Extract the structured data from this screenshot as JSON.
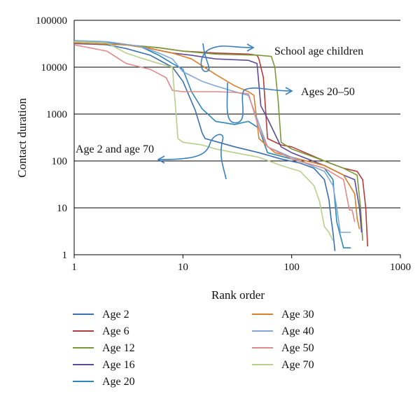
{
  "chart_data": {
    "type": "line",
    "x_scale": "log",
    "y_scale": "log",
    "xlim": [
      1,
      1000
    ],
    "ylim": [
      1,
      100000
    ],
    "xlabel": "Rank order",
    "ylabel": "Contact duration",
    "x_ticks": [
      "1",
      "10",
      "100",
      "1000"
    ],
    "y_ticks": [
      "1",
      "10",
      "100",
      "1000",
      "10000",
      "100000"
    ],
    "grid": "horizontal major lines",
    "legend_position": "bottom",
    "annotations": [
      {
        "text": "School age children",
        "arrow": "from ranks ~15–50 at ~20000 pointing right"
      },
      {
        "text": "Ages 20–50",
        "arrow": "from ranks ~25–70 at ~1500–3000 pointing right"
      },
      {
        "text": "Age 2 and age 70",
        "arrow": "from ranks ~10–25 at ~150 pointing left"
      }
    ],
    "series": [
      {
        "name": "Age 2",
        "color": "#3a6fb0",
        "x": [
          1,
          2,
          3,
          5,
          8,
          10,
          13,
          15,
          16,
          20,
          30,
          50,
          80,
          120,
          160,
          200,
          220,
          230,
          240,
          250
        ],
        "y": [
          32000,
          30000,
          25000,
          18000,
          10000,
          5000,
          1200,
          400,
          300,
          260,
          200,
          150,
          110,
          90,
          70,
          40,
          15,
          6,
          3,
          1.2
        ]
      },
      {
        "name": "Age 6",
        "color": "#b33b3b",
        "x": [
          1,
          3,
          6,
          10,
          20,
          40,
          48,
          50,
          55,
          60,
          80,
          100,
          200,
          300,
          400,
          450,
          480,
          500
        ],
        "y": [
          33000,
          30000,
          26000,
          22000,
          20000,
          19000,
          18000,
          15000,
          6000,
          300,
          220,
          200,
          100,
          70,
          60,
          40,
          10,
          1.5
        ]
      },
      {
        "name": "Age 12",
        "color": "#7a9a3a",
        "x": [
          1,
          3,
          6,
          10,
          20,
          50,
          65,
          70,
          75,
          80,
          100,
          200,
          300,
          400,
          430,
          450
        ],
        "y": [
          33000,
          30000,
          26000,
          22000,
          19000,
          18000,
          17000,
          10000,
          2000,
          250,
          180,
          100,
          70,
          50,
          10,
          2
        ]
      },
      {
        "name": "Age 16",
        "color": "#5e4a9a",
        "x": [
          1,
          3,
          5,
          8,
          12,
          20,
          40,
          48,
          52,
          60,
          80,
          100,
          200,
          300,
          380,
          420,
          440
        ],
        "y": [
          32000,
          30000,
          25000,
          20000,
          18000,
          15000,
          14000,
          12000,
          1500,
          800,
          200,
          150,
          80,
          50,
          40,
          10,
          3
        ]
      },
      {
        "name": "Age 20",
        "color": "#2b87b8",
        "x": [
          1,
          2,
          4,
          6,
          8,
          10,
          12,
          15,
          20,
          30,
          40,
          50,
          60,
          100,
          200,
          240,
          260,
          300,
          350
        ],
        "y": [
          36000,
          34000,
          28000,
          18000,
          12000,
          9000,
          3000,
          1300,
          700,
          600,
          700,
          500,
          150,
          110,
          70,
          40,
          5,
          1.4,
          1.4
        ]
      },
      {
        "name": "Age 30",
        "color": "#d98028",
        "x": [
          1,
          3,
          5,
          8,
          12,
          20,
          30,
          40,
          45,
          50,
          70,
          100,
          200,
          300,
          380,
          400,
          420
        ],
        "y": [
          33000,
          30000,
          25000,
          20000,
          15000,
          7000,
          4000,
          3000,
          2500,
          300,
          150,
          120,
          80,
          50,
          20,
          6,
          3.5
        ]
      },
      {
        "name": "Age 40",
        "color": "#7fa8d6",
        "x": [
          1,
          2,
          4,
          6,
          8,
          10,
          15,
          20,
          30,
          40,
          60,
          100,
          200,
          240,
          260,
          280,
          320,
          350
        ],
        "y": [
          37000,
          35000,
          28000,
          20000,
          15000,
          8000,
          5000,
          4000,
          3000,
          2500,
          200,
          120,
          60,
          30,
          10,
          3,
          3,
          3
        ]
      },
      {
        "name": "Age 50",
        "color": "#e08a8a",
        "x": [
          1,
          2,
          3,
          5,
          7,
          8,
          10,
          20,
          30,
          40,
          50,
          60,
          100,
          200,
          300,
          340,
          360,
          380
        ],
        "y": [
          30000,
          22000,
          12000,
          9000,
          6000,
          3200,
          3000,
          3000,
          2900,
          2700,
          500,
          200,
          110,
          70,
          40,
          9,
          9,
          5
        ]
      },
      {
        "name": "Age 70",
        "color": "#b7d08a",
        "x": [
          1,
          2,
          3,
          4,
          6,
          8,
          9,
          10,
          15,
          20,
          30,
          50,
          80,
          120,
          160,
          180,
          200,
          220,
          240
        ],
        "y": [
          35000,
          33000,
          20000,
          16000,
          12000,
          10000,
          300,
          250,
          220,
          180,
          150,
          120,
          80,
          60,
          30,
          14,
          4,
          3,
          2
        ]
      }
    ]
  }
}
